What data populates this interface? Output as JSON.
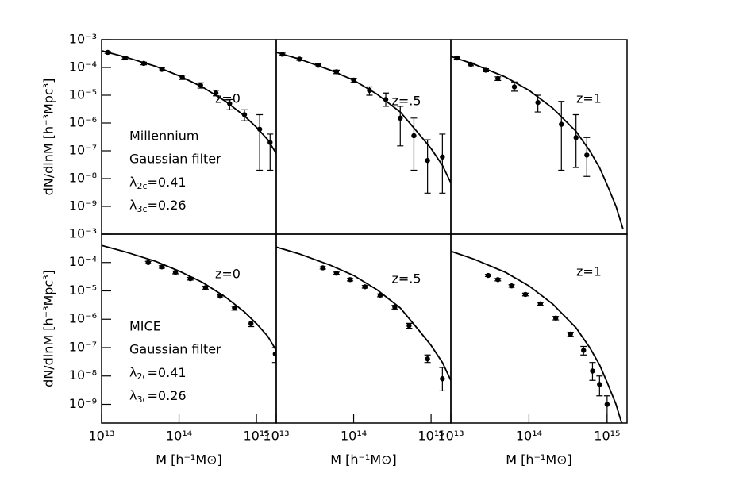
{
  "chart_data": [
    {
      "type": "scatter",
      "title": "z=0",
      "xlog": true,
      "ylog": true,
      "xlim": [
        10000000000000.0,
        1800000000000000.0
      ],
      "ylim": [
        1e-10,
        0.001
      ],
      "yticks": [
        {
          "value": 0.001,
          "label": "10⁻³"
        },
        {
          "value": 0.0001,
          "label": "10⁻⁴"
        },
        {
          "value": 1e-05,
          "label": "10⁻⁵"
        },
        {
          "value": 1e-06,
          "label": "10⁻⁶"
        },
        {
          "value": 1e-07,
          "label": "10⁻⁷"
        },
        {
          "value": 1e-08,
          "label": "10⁻⁸"
        },
        {
          "value": 1e-09,
          "label": "10⁻⁹"
        }
      ],
      "ylabel": "dN/dlnM [h⁻³Mpc³]",
      "annotations": [
        "Millennium",
        "Gaussian filter",
        "λ2c=0.41",
        "λ3c=0.26"
      ],
      "color": "#000000",
      "points": {
        "x": [
          12000000000000.0,
          20000000000000.0,
          35000000000000.0,
          60000000000000.0,
          110000000000000.0,
          190000000000000.0,
          300000000000000.0,
          450000000000000.0,
          700000000000000.0,
          1100000000000000.0,
          1500000000000000.0
        ],
        "values": [
          0.00035,
          0.00022,
          0.00014,
          8.5e-05,
          4.5e-05,
          2.3e-05,
          1.2e-05,
          5e-06,
          2e-06,
          6e-07,
          2e-07
        ],
        "lower": [
          0.00032,
          0.0002,
          0.000125,
          7.5e-05,
          3.7e-05,
          1.8e-05,
          9.5e-06,
          3e-06,
          1.2e-06,
          2e-08,
          2e-08
        ],
        "upper": [
          0.00038,
          0.00024,
          0.000155,
          9.5e-05,
          5.3e-05,
          2.8e-05,
          1.5e-05,
          7e-06,
          3e-06,
          2e-06,
          4e-07
        ]
      },
      "model": {
        "x": [
          10000000000000.0,
          20000000000000.0,
          50000000000000.0,
          100000000000000.0,
          200000000000000.0,
          400000000000000.0,
          700000000000000.0,
          1000000000000000.0,
          1400000000000000.0,
          1800000000000000.0
        ],
        "values": [
          0.0004,
          0.00024,
          0.00011,
          5e-05,
          2e-05,
          6e-06,
          1.8e-06,
          7e-07,
          2.5e-07,
          8e-08
        ]
      }
    },
    {
      "type": "scatter",
      "title": "z=.5",
      "xlog": true,
      "ylog": true,
      "xlim": [
        10000000000000.0,
        1800000000000000.0
      ],
      "ylim": [
        1e-10,
        0.001
      ],
      "color": "#000000",
      "points": {
        "x": [
          12000000000000.0,
          20000000000000.0,
          35000000000000.0,
          60000000000000.0,
          100000000000000.0,
          160000000000000.0,
          260000000000000.0,
          400000000000000.0,
          600000000000000.0,
          900000000000000.0,
          1400000000000000.0
        ],
        "values": [
          0.0003,
          0.0002,
          0.00012,
          7e-05,
          3.5e-05,
          1.5e-05,
          7e-06,
          1.5e-06,
          3.5e-07,
          4.5e-08,
          6e-08
        ],
        "lower": [
          0.00027,
          0.00018,
          0.000105,
          6e-05,
          2.9e-05,
          1e-05,
          4e-06,
          1.5e-07,
          2e-08,
          3e-09,
          3e-09
        ],
        "upper": [
          0.00033,
          0.00022,
          0.000135,
          8e-05,
          4.1e-05,
          2e-05,
          1.2e-05,
          4e-06,
          1.5e-06,
          2.5e-07,
          4e-07
        ]
      },
      "model": {
        "x": [
          10000000000000.0,
          20000000000000.0,
          50000000000000.0,
          100000000000000.0,
          200000000000000.0,
          400000000000000.0,
          700000000000000.0,
          1000000000000000.0,
          1400000000000000.0,
          1800000000000000.0
        ],
        "values": [
          0.00035,
          0.0002,
          8e-05,
          3.5e-05,
          1.1e-05,
          2.5e-06,
          4e-07,
          1.2e-07,
          3e-08,
          7e-09
        ]
      }
    },
    {
      "type": "scatter",
      "title": "z=1",
      "xlog": true,
      "ylog": true,
      "xlim": [
        10000000000000.0,
        1800000000000000.0
      ],
      "ylim": [
        1e-10,
        0.001
      ],
      "color": "#000000",
      "points": {
        "x": [
          12000000000000.0,
          18000000000000.0,
          28000000000000.0,
          40000000000000.0,
          65000000000000.0,
          130000000000000.0,
          260000000000000.0,
          400000000000000.0,
          550000000000000.0
        ],
        "values": [
          0.00022,
          0.00013,
          8e-05,
          4e-05,
          2e-05,
          5.5e-06,
          9e-07,
          3e-07,
          7e-08
        ],
        "lower": [
          0.0002,
          0.000115,
          7e-05,
          3.4e-05,
          1.4e-05,
          2.5e-06,
          2e-08,
          2.5e-08,
          1.2e-08
        ],
        "upper": [
          0.00024,
          0.000145,
          9e-05,
          4.6e-05,
          3e-05,
          1e-05,
          6e-06,
          2e-06,
          3e-07
        ]
      },
      "model": {
        "x": [
          10000000000000.0,
          20000000000000.0,
          50000000000000.0,
          100000000000000.0,
          200000000000000.0,
          400000000000000.0,
          600000000000000.0,
          800000000000000.0,
          1000000000000000.0,
          1300000000000000.0,
          1600000000000000.0
        ],
        "values": [
          0.00025,
          0.00013,
          4.5e-05,
          1.5e-05,
          3.5e-06,
          5e-07,
          1e-07,
          2.5e-08,
          6e-09,
          1e-09,
          1.5e-10
        ]
      }
    },
    {
      "type": "scatter",
      "title": "z=0",
      "xlog": true,
      "ylog": true,
      "xlim": [
        10000000000000.0,
        1800000000000000.0
      ],
      "ylim": [
        2.2e-10,
        0.001
      ],
      "xticks": [
        {
          "value": 10000000000000.0,
          "label": "10¹³"
        },
        {
          "value": 100000000000000.0,
          "label": "10¹⁴"
        },
        {
          "value": 1000000000000000.0,
          "label": "10¹⁵"
        }
      ],
      "yticks": [
        {
          "value": 0.001,
          "label": "10⁻³"
        },
        {
          "value": 0.0001,
          "label": "10⁻⁴"
        },
        {
          "value": 1e-05,
          "label": "10⁻⁵"
        },
        {
          "value": 1e-06,
          "label": "10⁻⁶"
        },
        {
          "value": 1e-07,
          "label": "10⁻⁷"
        },
        {
          "value": 1e-08,
          "label": "10⁻⁸"
        },
        {
          "value": 1e-09,
          "label": "10⁻⁹"
        }
      ],
      "xlabel": "M [h⁻¹M⊙]",
      "ylabel": "dN/dlnM [h⁻³Mpc³]",
      "annotations": [
        "MICE",
        "Gaussian filter",
        "λ2c=0.41",
        "λ3c=0.26"
      ],
      "color": "#000000",
      "points": {
        "x": [
          40000000000000.0,
          60000000000000.0,
          90000000000000.0,
          140000000000000.0,
          220000000000000.0,
          340000000000000.0,
          520000000000000.0,
          850000000000000.0,
          1750000000000000.0
        ],
        "values": [
          0.0001,
          7e-05,
          4.5e-05,
          2.7e-05,
          1.3e-05,
          6.5e-06,
          2.5e-06,
          7e-07,
          6e-08
        ],
        "lower": [
          9e-05,
          6.3e-05,
          4e-05,
          2.4e-05,
          1.15e-05,
          5.7e-06,
          2.1e-06,
          5.5e-07,
          3e-08
        ],
        "upper": [
          0.00011,
          7.7e-05,
          5e-05,
          3e-05,
          1.45e-05,
          7.3e-06,
          2.9e-06,
          8.5e-07,
          1e-07
        ]
      },
      "model": {
        "x": [
          10000000000000.0,
          20000000000000.0,
          50000000000000.0,
          100000000000000.0,
          200000000000000.0,
          400000000000000.0,
          700000000000000.0,
          1000000000000000.0,
          1400000000000000.0,
          1800000000000000.0
        ],
        "values": [
          0.0004,
          0.00024,
          0.00011,
          5e-05,
          2e-05,
          6e-06,
          1.8e-06,
          7e-07,
          2.5e-07,
          8e-08
        ]
      }
    },
    {
      "type": "scatter",
      "title": "z=.5",
      "xlog": true,
      "ylog": true,
      "xlim": [
        10000000000000.0,
        1800000000000000.0
      ],
      "ylim": [
        2.2e-10,
        0.001
      ],
      "xticks": [
        {
          "value": 10000000000000.0,
          "label": "10¹³"
        },
        {
          "value": 100000000000000.0,
          "label": "10¹⁴"
        },
        {
          "value": 1000000000000000.0,
          "label": "10¹⁵"
        }
      ],
      "xlabel": "M [h⁻¹M⊙]",
      "color": "#000000",
      "points": {
        "x": [
          40000000000000.0,
          60000000000000.0,
          90000000000000.0,
          140000000000000.0,
          220000000000000.0,
          340000000000000.0,
          520000000000000.0,
          900000000000000.0,
          1400000000000000.0
        ],
        "values": [
          6.5e-05,
          4.2e-05,
          2.5e-05,
          1.4e-05,
          7e-06,
          2.7e-06,
          6e-07,
          4e-08,
          8e-09
        ],
        "lower": [
          5.9e-05,
          3.8e-05,
          2.25e-05,
          1.25e-05,
          6.2e-06,
          2.3e-06,
          4.8e-07,
          3e-08,
          3e-09
        ],
        "upper": [
          7.1e-05,
          4.6e-05,
          2.75e-05,
          1.55e-05,
          7.8e-06,
          3.1e-06,
          7.2e-07,
          5.5e-08,
          2e-08
        ]
      },
      "model": {
        "x": [
          10000000000000.0,
          20000000000000.0,
          50000000000000.0,
          100000000000000.0,
          200000000000000.0,
          400000000000000.0,
          700000000000000.0,
          1000000000000000.0,
          1400000000000000.0,
          1800000000000000.0
        ],
        "values": [
          0.00035,
          0.0002,
          8e-05,
          3.5e-05,
          1.1e-05,
          2.5e-06,
          4e-07,
          1.2e-07,
          3e-08,
          7e-09
        ]
      }
    },
    {
      "type": "scatter",
      "title": "z=1",
      "xlog": true,
      "ylog": true,
      "xlim": [
        10000000000000.0,
        1800000000000000.0
      ],
      "ylim": [
        2.2e-10,
        0.001
      ],
      "xticks": [
        {
          "value": 10000000000000.0,
          "label": "10¹³"
        },
        {
          "value": 100000000000000.0,
          "label": "10¹⁴"
        },
        {
          "value": 1000000000000000.0,
          "label": "10¹⁵"
        }
      ],
      "xlabel": "M [h⁻¹M⊙]",
      "color": "#000000",
      "points": {
        "x": [
          30000000000000.0,
          40000000000000.0,
          60000000000000.0,
          90000000000000.0,
          140000000000000.0,
          220000000000000.0,
          340000000000000.0,
          500000000000000.0,
          650000000000000.0,
          800000000000000.0,
          1000000000000000.0
        ],
        "values": [
          3.5e-05,
          2.5e-05,
          1.5e-05,
          7.5e-06,
          3.5e-06,
          1.1e-06,
          3e-07,
          8e-08,
          1.5e-08,
          5e-09,
          1e-09
        ],
        "lower": [
          3.2e-05,
          2.25e-05,
          1.35e-05,
          6.7e-06,
          3.1e-06,
          9.5e-07,
          2.5e-07,
          5.5e-08,
          7e-09,
          2e-09,
          2e-10
        ],
        "upper": [
          3.8e-05,
          2.75e-05,
          1.65e-05,
          8.3e-06,
          3.9e-06,
          1.25e-06,
          3.5e-07,
          1.1e-07,
          3e-08,
          1e-08,
          2e-09
        ]
      },
      "model": {
        "x": [
          10000000000000.0,
          20000000000000.0,
          50000000000000.0,
          100000000000000.0,
          200000000000000.0,
          400000000000000.0,
          600000000000000.0,
          800000000000000.0,
          1000000000000000.0,
          1300000000000000.0,
          1600000000000000.0
        ],
        "values": [
          0.00025,
          0.00013,
          4.5e-05,
          1.5e-05,
          3.5e-06,
          5e-07,
          1e-07,
          2.5e-08,
          6e-09,
          1e-09,
          1.5e-10
        ]
      }
    }
  ]
}
